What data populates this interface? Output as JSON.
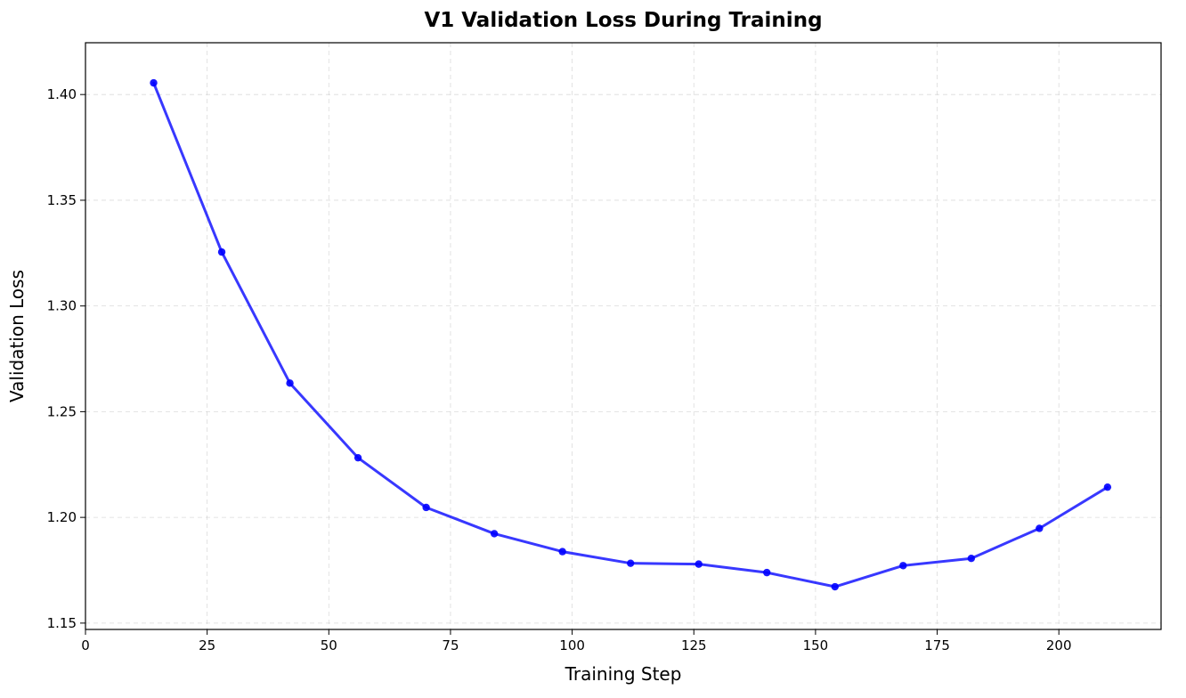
{
  "chart_data": {
    "type": "line",
    "title": "V1 Validation Loss During Training",
    "xlabel": "Training Step",
    "ylabel": "Validation Loss",
    "xlim": [
      0,
      221
    ],
    "ylim": [
      1.147,
      1.4245
    ],
    "x_ticks": [
      0,
      25,
      50,
      75,
      100,
      125,
      150,
      175,
      200
    ],
    "x_tick_labels": [
      "0",
      "25",
      "50",
      "75",
      "100",
      "125",
      "150",
      "175",
      "200"
    ],
    "y_ticks": [
      1.15,
      1.2,
      1.25,
      1.3,
      1.35,
      1.4
    ],
    "y_tick_labels": [
      "1.15",
      "1.20",
      "1.25",
      "1.30",
      "1.35",
      "1.40"
    ],
    "grid": true,
    "series": [
      {
        "color": "#0000ff",
        "marker": "circle",
        "x": [
          14,
          28,
          42,
          56,
          70,
          84,
          98,
          112,
          126,
          140,
          154,
          168,
          182,
          196,
          210
        ],
        "y": [
          1.4055,
          1.3255,
          1.2635,
          1.2282,
          1.2047,
          1.1923,
          1.1838,
          1.1783,
          1.1779,
          1.1739,
          1.1672,
          1.1772,
          1.1806,
          1.1948,
          1.2143
        ]
      }
    ]
  }
}
